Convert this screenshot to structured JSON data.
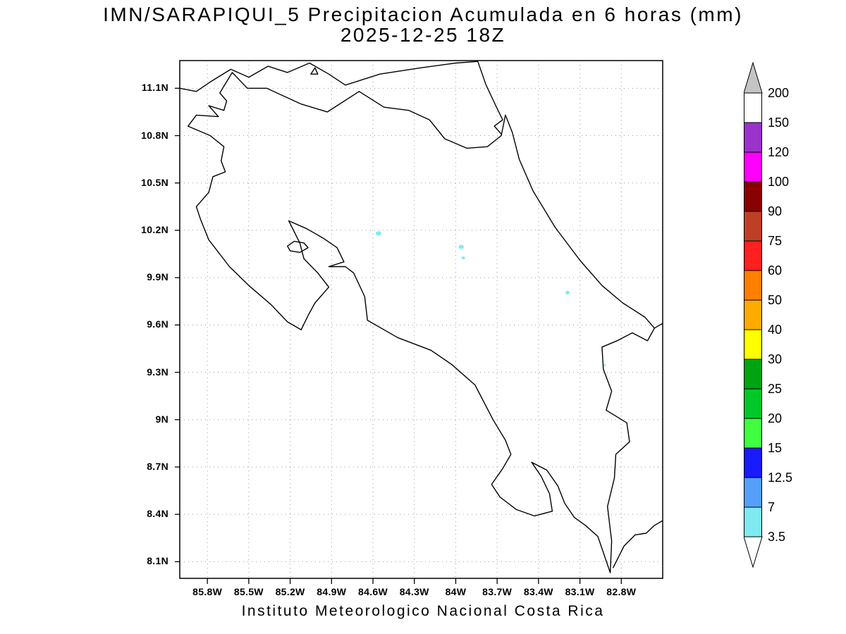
{
  "footer": "Instituto  Meteorologico  Nacional  Costa  Rica",
  "chart_data": {
    "type": "heatmap",
    "title": "IMN/SARAPIQUI_5 Precipitacion Acumulada en 6 horas (mm)",
    "subtitle": "2025-12-25 18Z",
    "units": "mm",
    "extent": {
      "lon_min": -86.0,
      "lon_max": -82.5,
      "lat_min": 7.99,
      "lat_max": 11.28
    },
    "x_axis": {
      "tick_labels": [
        "85.8W",
        "85.5W",
        "85.2W",
        "84.9W",
        "84.6W",
        "84.3W",
        "84W",
        "83.7W",
        "83.4W",
        "83.1W",
        "82.8W"
      ],
      "tick_lons": [
        -85.8,
        -85.5,
        -85.2,
        -84.9,
        -84.6,
        -84.3,
        -84.0,
        -83.7,
        -83.4,
        -83.1,
        -82.8
      ]
    },
    "y_axis": {
      "tick_labels": [
        "11.1N",
        "10.8N",
        "10.5N",
        "10.2N",
        "9.9N",
        "9.6N",
        "9.3N",
        "9N",
        "8.7N",
        "8.4N",
        "8.1N"
      ],
      "tick_lats": [
        11.1,
        10.8,
        10.5,
        10.2,
        9.9,
        9.6,
        9.3,
        9.0,
        8.7,
        8.4,
        8.1
      ]
    },
    "grid": {
      "style": "dotted",
      "color": "#999999"
    },
    "colorbar": {
      "boundary_labels": [
        "200",
        "150",
        "120",
        "100",
        "90",
        "75",
        "60",
        "50",
        "40",
        "30",
        "25",
        "20",
        "15",
        "12.5",
        "7",
        "3.5"
      ],
      "band_colors_top_to_bottom": [
        "#FFFFFF",
        "#9933CC",
        "#FF00FF",
        "#8B0000",
        "#BF3F26",
        "#FF2020",
        "#FF8000",
        "#FFAC00",
        "#FFFF00",
        "#00A410",
        "#00C828",
        "#40FF40",
        "#1A1AFF",
        "#55A0FA",
        "#7FEAF0"
      ],
      "over_color": "#C4C4C4",
      "under_color": "#FFFFFF"
    },
    "precip_spots": [
      {
        "lon": -84.56,
        "lat": 10.18,
        "rx": 4,
        "ry": 3,
        "value_range_mm": "3.5-7"
      },
      {
        "lon": -83.96,
        "lat": 10.095,
        "rx": 3.5,
        "ry": 3,
        "value_range_mm": "3.5-7"
      },
      {
        "lon": -83.945,
        "lat": 10.025,
        "rx": 2.5,
        "ry": 2,
        "value_range_mm": "3.5-7"
      },
      {
        "lon": -83.19,
        "lat": 9.805,
        "rx": 3,
        "ry": 2.5,
        "value_range_mm": "3.5-7"
      },
      {
        "lon": -82.92,
        "lat": 9.345,
        "rx": 1.5,
        "ry": 1.5,
        "value_range_mm": "3.5-7"
      }
    ]
  },
  "map_shapes": {
    "costa_rica_outline": {
      "closed": true,
      "points": [
        [
          -85.71,
          11.07
        ],
        [
          -85.62,
          11.2
        ],
        [
          -85.51,
          11.1
        ],
        [
          -85.37,
          11.1
        ],
        [
          -85.12,
          11.0
        ],
        [
          -84.93,
          10.95
        ],
        [
          -84.7,
          11.08
        ],
        [
          -84.52,
          10.98
        ],
        [
          -84.34,
          10.96
        ],
        [
          -84.19,
          10.9
        ],
        [
          -84.08,
          10.78
        ],
        [
          -83.92,
          10.72
        ],
        [
          -83.77,
          10.73
        ],
        [
          -83.67,
          10.8
        ],
        [
          -83.64,
          10.93
        ],
        [
          -83.59,
          10.82
        ],
        [
          -83.54,
          10.65
        ],
        [
          -83.44,
          10.45
        ],
        [
          -83.28,
          10.22
        ],
        [
          -83.1,
          10.01
        ],
        [
          -82.94,
          9.85
        ],
        [
          -82.79,
          9.74
        ],
        [
          -82.63,
          9.65
        ],
        [
          -82.56,
          9.58
        ],
        [
          -82.61,
          9.5
        ],
        [
          -82.72,
          9.55
        ],
        [
          -82.83,
          9.5
        ],
        [
          -82.94,
          9.46
        ],
        [
          -82.93,
          9.32
        ],
        [
          -82.87,
          9.18
        ],
        [
          -82.91,
          9.06
        ],
        [
          -82.76,
          8.98
        ],
        [
          -82.74,
          8.86
        ],
        [
          -82.84,
          8.78
        ],
        [
          -82.85,
          8.63
        ],
        [
          -82.9,
          8.45
        ],
        [
          -82.87,
          8.23
        ],
        [
          -82.88,
          8.03
        ],
        [
          -82.97,
          8.26
        ],
        [
          -83.06,
          8.33
        ],
        [
          -83.14,
          8.38
        ],
        [
          -83.21,
          8.47
        ],
        [
          -83.26,
          8.58
        ],
        [
          -83.34,
          8.68
        ],
        [
          -83.45,
          8.73
        ],
        [
          -83.38,
          8.64
        ],
        [
          -83.32,
          8.53
        ],
        [
          -83.3,
          8.42
        ],
        [
          -83.43,
          8.39
        ],
        [
          -83.56,
          8.43
        ],
        [
          -83.68,
          8.51
        ],
        [
          -83.74,
          8.59
        ],
        [
          -83.66,
          8.69
        ],
        [
          -83.6,
          8.78
        ],
        [
          -83.64,
          8.87
        ],
        [
          -83.73,
          9.0
        ],
        [
          -83.86,
          9.22
        ],
        [
          -84.03,
          9.35
        ],
        [
          -84.18,
          9.44
        ],
        [
          -84.42,
          9.52
        ],
        [
          -84.64,
          9.63
        ],
        [
          -84.66,
          9.78
        ],
        [
          -84.74,
          9.93
        ],
        [
          -84.8,
          9.97
        ],
        [
          -84.92,
          9.97
        ],
        [
          -84.81,
          10.0
        ],
        [
          -84.86,
          10.09
        ],
        [
          -84.96,
          10.15
        ],
        [
          -85.08,
          10.21
        ],
        [
          -85.21,
          10.26
        ],
        [
          -85.13,
          10.12
        ],
        [
          -85.1,
          10.02
        ],
        [
          -85.0,
          9.93
        ],
        [
          -84.92,
          9.84
        ],
        [
          -85.02,
          9.74
        ],
        [
          -85.07,
          9.66
        ],
        [
          -85.12,
          9.57
        ],
        [
          -85.22,
          9.62
        ],
        [
          -85.34,
          9.73
        ],
        [
          -85.5,
          9.85
        ],
        [
          -85.64,
          9.97
        ],
        [
          -85.79,
          10.14
        ],
        [
          -85.85,
          10.27
        ],
        [
          -85.88,
          10.35
        ],
        [
          -85.79,
          10.44
        ],
        [
          -85.76,
          10.54
        ],
        [
          -85.67,
          10.57
        ],
        [
          -85.7,
          10.64
        ],
        [
          -85.68,
          10.73
        ],
        [
          -85.78,
          10.8
        ],
        [
          -85.94,
          10.86
        ],
        [
          -85.88,
          10.93
        ],
        [
          -85.72,
          10.92
        ],
        [
          -85.79,
          10.99
        ],
        [
          -85.68,
          10.96
        ],
        [
          -85.66,
          11.02
        ]
      ]
    },
    "isla_chira": {
      "closed": true,
      "points": [
        [
          -85.22,
          10.1
        ],
        [
          -85.17,
          10.13
        ],
        [
          -85.1,
          10.12
        ],
        [
          -85.07,
          10.09
        ],
        [
          -85.13,
          10.06
        ],
        [
          -85.2,
          10.07
        ]
      ]
    },
    "lake_nicaragua_island": {
      "closed": true,
      "points": [
        [
          -85.05,
          11.19
        ],
        [
          -85.0,
          11.19
        ],
        [
          -85.02,
          11.23
        ]
      ]
    },
    "nicaragua_coast_and_lake_shore": {
      "closed": false,
      "points": [
        [
          -86.0,
          11.1
        ],
        [
          -85.88,
          11.08
        ],
        [
          -85.78,
          11.14
        ],
        [
          -85.63,
          11.22
        ],
        [
          -85.5,
          11.17
        ],
        [
          -85.36,
          11.24
        ],
        [
          -85.22,
          11.2
        ],
        [
          -85.06,
          11.26
        ],
        [
          -84.92,
          11.19
        ],
        [
          -84.8,
          11.12
        ],
        [
          -84.55,
          11.19
        ],
        [
          -84.25,
          11.23
        ],
        [
          -84.0,
          11.26
        ],
        [
          -83.84,
          11.27
        ],
        [
          -83.78,
          11.12
        ],
        [
          -83.71,
          10.99
        ],
        [
          -83.66,
          10.9
        ],
        [
          -83.72,
          10.86
        ],
        [
          -83.67,
          10.81
        ]
      ]
    },
    "panama_pacific_coast": {
      "closed": false,
      "points": [
        [
          -82.86,
          8.06
        ],
        [
          -82.78,
          8.2
        ],
        [
          -82.7,
          8.27
        ],
        [
          -82.62,
          8.28
        ],
        [
          -82.56,
          8.33
        ],
        [
          -82.5,
          8.36
        ]
      ]
    },
    "panama_caribbean_coast": {
      "closed": false,
      "points": [
        [
          -82.56,
          9.58
        ],
        [
          -82.52,
          9.6
        ],
        [
          -82.5,
          9.61
        ]
      ]
    }
  }
}
